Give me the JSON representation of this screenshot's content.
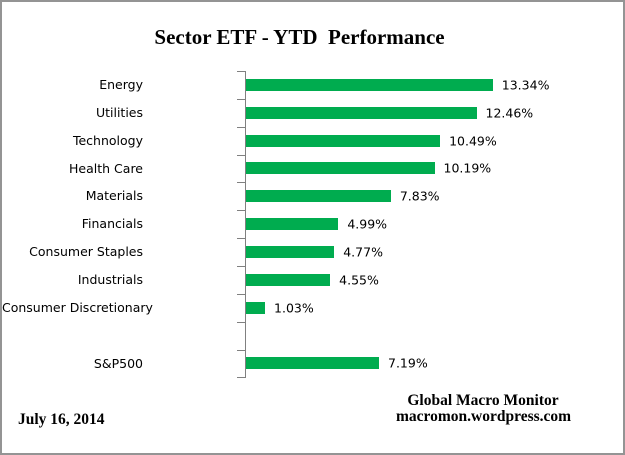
{
  "title": "Sector ETF - YTD  Performance",
  "footer": {
    "date": "July 16, 2014",
    "source_name": "Global Macro Monitor",
    "source_url": "macromon.wordpress.com"
  },
  "chart_data": {
    "type": "bar",
    "orientation": "horizontal",
    "title": "Sector ETF - YTD  Performance",
    "categories": [
      "Energy",
      "Utilities",
      "Technology",
      "Health Care",
      "Materials",
      "Financials",
      "Consumer Staples",
      "Industrials",
      "Consumer Discretionary",
      "",
      "S&P500"
    ],
    "values": [
      13.34,
      12.46,
      10.49,
      10.19,
      7.83,
      4.99,
      4.77,
      4.55,
      1.03,
      null,
      7.19
    ],
    "value_labels": [
      "13.34%",
      "12.46%",
      "10.49%",
      "10.19%",
      "7.83%",
      "4.99%",
      "4.77%",
      "4.55%",
      "1.03%",
      "",
      "7.19%"
    ],
    "xlim": [
      0,
      14
    ],
    "grid": false,
    "legend": false,
    "bar_color": "#00AC4F",
    "axis_color": "#808080",
    "text_color": "#000000"
  }
}
